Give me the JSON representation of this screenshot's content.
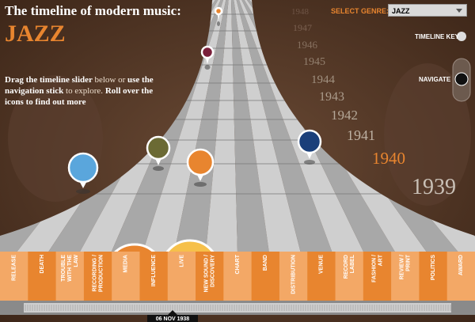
{
  "header": {
    "title": "The timeline of modern music:",
    "genre": "JAZZ"
  },
  "intro": [
    {
      "text": "Drag the timeline slider ",
      "bold": true
    },
    {
      "text": "below or ",
      "bold": false
    },
    {
      "text": "use the navigation stick ",
      "bold": true
    },
    {
      "text": "to explore. ",
      "bold": false
    },
    {
      "text": "Roll over the icons to find out more",
      "bold": true
    }
  ],
  "controls": {
    "select_label": "SELECT GENRE:",
    "select_value": "JAZZ",
    "timeline_key": "TIMELINE KEY",
    "navigate": "NAVIGATE"
  },
  "years": [
    {
      "label": "1948",
      "color": "#6e5445"
    },
    {
      "label": "1947",
      "color": "#7a6050"
    },
    {
      "label": "1946",
      "color": "#86705f"
    },
    {
      "label": "1945",
      "color": "#93806f"
    },
    {
      "label": "1944",
      "color": "#a0907f"
    },
    {
      "label": "1943",
      "color": "#ab9c8c"
    },
    {
      "label": "1942",
      "color": "#b5a898"
    },
    {
      "label": "1941",
      "color": "#bdb1a3"
    },
    {
      "label": "1940",
      "color": "#e8852f"
    },
    {
      "label": "1939",
      "color": "#c9c0b6"
    }
  ],
  "tabs": [
    {
      "lines": [
        "RELEASE"
      ],
      "color": "#f3a866"
    },
    {
      "lines": [
        "DEATH"
      ],
      "color": "#e8852f"
    },
    {
      "lines": [
        "TROUBLE",
        "WITH THE",
        "LAW"
      ],
      "color": "#f3a866"
    },
    {
      "lines": [
        "RECORDING /",
        "PRODUCTION"
      ],
      "color": "#e8852f"
    },
    {
      "lines": [
        "MEDIA"
      ],
      "color": "#f3a866"
    },
    {
      "lines": [
        "INFLUENCE"
      ],
      "color": "#e8852f"
    },
    {
      "lines": [
        "LIVE"
      ],
      "color": "#f3a866"
    },
    {
      "lines": [
        "NEW SOUND /",
        "DISCOVERY"
      ],
      "color": "#e8852f"
    },
    {
      "lines": [
        "CHART"
      ],
      "color": "#f3a866"
    },
    {
      "lines": [
        "BAND"
      ],
      "color": "#e8852f"
    },
    {
      "lines": [
        "DISTRIBUTION"
      ],
      "color": "#f3a866"
    },
    {
      "lines": [
        "VENUE"
      ],
      "color": "#e8852f"
    },
    {
      "lines": [
        "RECORD",
        "LABEL"
      ],
      "color": "#f3a866"
    },
    {
      "lines": [
        "FASHION /",
        "ART"
      ],
      "color": "#e8852f"
    },
    {
      "lines": [
        "REVIEW /",
        "PRINT"
      ],
      "color": "#f3a866"
    },
    {
      "lines": [
        "POLITICS"
      ],
      "color": "#e8852f"
    },
    {
      "lines": [
        "AWARD"
      ],
      "color": "#f3a866"
    }
  ],
  "slider": {
    "date": "06 NOV 1938"
  }
}
